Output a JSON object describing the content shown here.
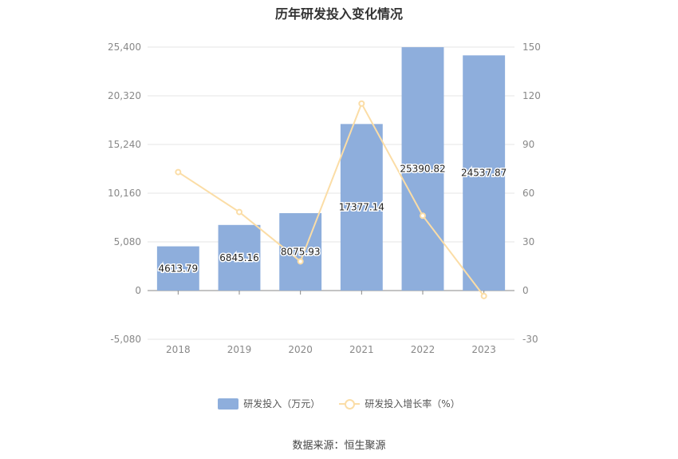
{
  "title": "历年研发投入变化情况",
  "source": "数据来源：恒生聚源",
  "colors": {
    "bar": "#8eaedc",
    "line": "#fbdda6",
    "grid": "#e6e6e6",
    "axis": "#888888"
  },
  "legend": {
    "bar_label": "研发投入（万元）",
    "line_label": "研发投入增长率（%）"
  },
  "chart_data": {
    "type": "bar",
    "categories": [
      "2018",
      "2019",
      "2020",
      "2021",
      "2022",
      "2023"
    ],
    "series": [
      {
        "name": "研发投入（万元）",
        "type": "bar",
        "axis": "left",
        "values": [
          4613.79,
          6845.16,
          8075.93,
          17377.14,
          25390.82,
          24537.87
        ],
        "labels": [
          "4613.79",
          "6845.16",
          "8075.93",
          "17377.14",
          "25390.82",
          "24537.87"
        ]
      },
      {
        "name": "研发投入增长率（%）",
        "type": "line",
        "axis": "right",
        "values": [
          73.0,
          48.4,
          17.98,
          115.2,
          46.1,
          -3.36
        ]
      }
    ],
    "y_left": {
      "min": -5080,
      "max": 25400,
      "ticks": [
        -5080,
        0,
        5080,
        10160,
        15240,
        20320,
        25400
      ],
      "tick_labels": [
        "-5,080",
        "0",
        "5,080",
        "10,160",
        "15,240",
        "20,320",
        "25,400"
      ]
    },
    "y_right": {
      "min": -30,
      "max": 150,
      "ticks": [
        -30,
        0,
        30,
        60,
        90,
        120,
        150
      ],
      "tick_labels": [
        "-30",
        "0",
        "30",
        "60",
        "90",
        "120",
        "150"
      ]
    },
    "grid": true,
    "legend_position": "bottom"
  }
}
